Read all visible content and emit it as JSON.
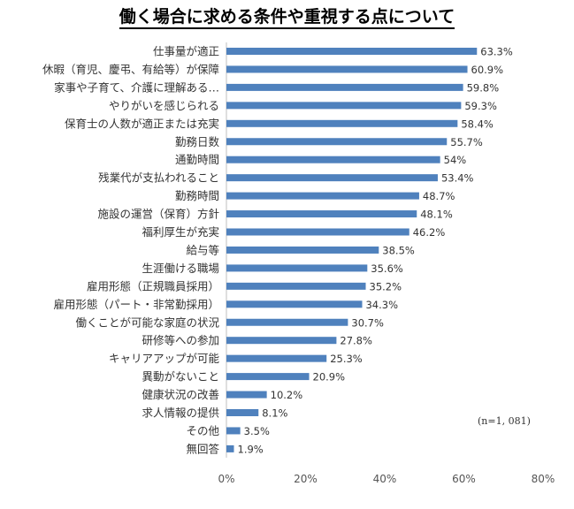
{
  "chart_data": {
    "type": "bar",
    "orientation": "horizontal",
    "title": "働く場合に求める条件や重視する点について",
    "categories": [
      "仕事量が適正",
      "休暇（育児、慶弔、有給等）が保障",
      "家事や子育て、介護に理解ある…",
      "やりがいを感じられる",
      "保育士の人数が適正または充実",
      "勤務日数",
      "通勤時間",
      "残業代が支払われること",
      "勤務時間",
      "施設の運営（保育）方針",
      "福利厚生が充実",
      "給与等",
      "生涯働ける職場",
      "雇用形態（正規職員採用）",
      "雇用形態（パート・非常勤採用）",
      "働くことが可能な家庭の状況",
      "研修等への参加",
      "キャリアアップが可能",
      "異動がないこと",
      "健康状況の改善",
      "求人情報の提供",
      "その他",
      "無回答"
    ],
    "values": [
      63.3,
      60.9,
      59.8,
      59.3,
      58.4,
      55.7,
      54,
      53.4,
      48.7,
      48.1,
      46.2,
      38.5,
      35.6,
      35.2,
      34.3,
      30.7,
      27.8,
      25.3,
      20.9,
      10.2,
      8.1,
      3.5,
      1.9
    ],
    "value_labels": [
      "63.3%",
      "60.9%",
      "59.8%",
      "59.3%",
      "58.4%",
      "55.7%",
      "54%",
      "53.4%",
      "48.7%",
      "48.1%",
      "46.2%",
      "38.5%",
      "35.6%",
      "35.2%",
      "34.3%",
      "30.7%",
      "27.8%",
      "25.3%",
      "20.9%",
      "10.2%",
      "8.1%",
      "3.5%",
      "1.9%"
    ],
    "xlim": [
      0,
      80
    ],
    "xticks": [
      "0%",
      "20%",
      "40%",
      "60%",
      "80%"
    ],
    "grid": false,
    "bar_color": "#4f81bd",
    "annotation": "(n=1, 081)"
  }
}
